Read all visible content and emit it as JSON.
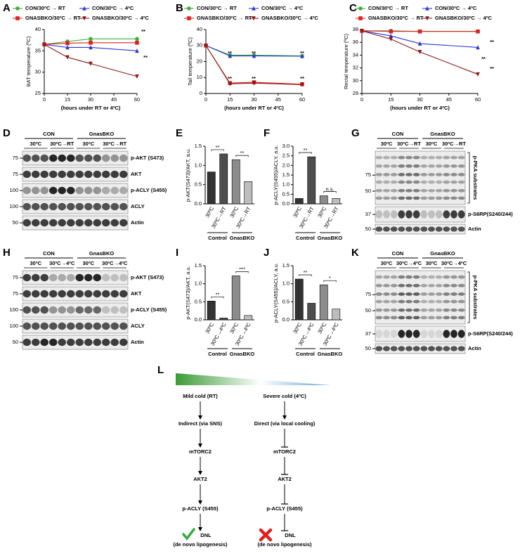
{
  "panel_labels": [
    "A",
    "B",
    "C",
    "D",
    "E",
    "F",
    "G",
    "H",
    "I",
    "J",
    "K",
    "L"
  ],
  "chart_data": [
    {
      "type": "line",
      "y_label": "BAT temperature (ºC)",
      "x_label": "(hours under RT or 4ºC)",
      "x": [
        0,
        15,
        30,
        60
      ],
      "xlim": [
        0,
        60
      ],
      "xticks": [
        0,
        15,
        30,
        45,
        60
      ],
      "ylim": [
        25,
        40
      ],
      "yticks": [
        25,
        30,
        35,
        40
      ],
      "series": [
        {
          "name": "CON/30ºC → RT",
          "color": "#3cb034",
          "marker": "circle",
          "values": [
            36.5,
            37.2,
            37.8,
            37.8
          ]
        },
        {
          "name": "CON/30ºC → 4ºC",
          "color": "#2a36d8",
          "marker": "triangle",
          "values": [
            36.5,
            35.8,
            35.8,
            35.0
          ]
        },
        {
          "name": "GNASBKO/30ºC → RT",
          "color": "#e0201c",
          "marker": "square",
          "values": [
            36.5,
            36.8,
            36.9,
            36.9
          ]
        },
        {
          "name": "GNASBKO/30ºC → 4ºC",
          "color": "#8b1a1a",
          "marker": "triangle-down",
          "values": [
            36.5,
            33.5,
            32.0,
            29.0
          ]
        }
      ],
      "annotations": [
        "**",
        "**"
      ]
    },
    {
      "type": "line",
      "y_label": "Tail temperature (ºC)",
      "x_label": "(hours under RT or 4ºC)",
      "x": [
        0,
        15,
        30,
        60
      ],
      "xlim": [
        0,
        60
      ],
      "xticks": [
        0,
        15,
        30,
        45,
        60
      ],
      "ylim": [
        0,
        40
      ],
      "yticks": [
        0,
        10,
        20,
        30,
        40
      ],
      "series": [
        {
          "name": "CON/30ºC → RT",
          "color": "#3cb034",
          "marker": "circle",
          "values": [
            30,
            24,
            24,
            23.5
          ]
        },
        {
          "name": "CON/30ºC → 4ºC",
          "color": "#2a36d8",
          "marker": "triangle",
          "values": [
            30,
            23.5,
            23.5,
            23.3
          ]
        },
        {
          "name": "GNASBKO/30ºC → RT",
          "color": "#e0201c",
          "marker": "square",
          "values": [
            30,
            6.5,
            7,
            5.8
          ]
        },
        {
          "name": "GNASBKO/30ºC → 4ºC",
          "color": "#8b1a1a",
          "marker": "triangle-down",
          "values": [
            30,
            6,
            6.5,
            5.5
          ]
        }
      ],
      "annotations": [
        "**",
        "**",
        "**",
        "**",
        "**",
        "**"
      ]
    },
    {
      "type": "line",
      "y_label": "Rectal temperature (ºC)",
      "x_label": "(hours under RT or 4ºC)",
      "x": [
        0,
        15,
        30,
        60
      ],
      "xlim": [
        0,
        60
      ],
      "xticks": [
        0,
        15,
        30,
        45,
        60
      ],
      "ylim": [
        28,
        38
      ],
      "yticks": [
        28,
        30,
        32,
        34,
        36,
        38
      ],
      "series": [
        {
          "name": "CON/30ºC → RT",
          "color": "#3cb034",
          "marker": "circle",
          "values": [
            37.8,
            37.8,
            37.7,
            37.7
          ]
        },
        {
          "name": "CON/30ºC → 4ºC",
          "color": "#2a36d8",
          "marker": "triangle",
          "values": [
            37.8,
            37,
            35.8,
            35.2
          ]
        },
        {
          "name": "GNASBKO/30ºC → RT",
          "color": "#e0201c",
          "marker": "square",
          "values": [
            37.8,
            37.7,
            37.7,
            37.7
          ]
        },
        {
          "name": "GNASBKO/30ºC → 4ºC",
          "color": "#8b1a1a",
          "marker": "triangle-down",
          "values": [
            37.8,
            36.5,
            34.5,
            31
          ]
        }
      ],
      "annotations": [
        "**",
        "**",
        "**"
      ]
    },
    {
      "type": "bar",
      "y_label": "p-AKT(S473)/AKT, a.u.",
      "categories": [
        "30ºC",
        "30ºC→RT",
        "30ºC",
        "30ºC→RT"
      ],
      "values": [
        0.83,
        1.3,
        1.15,
        0.58
      ],
      "colors": [
        "#333333",
        "#4d4d4d",
        "#8c8c8c",
        "#bdbdbd"
      ],
      "ylim": [
        0,
        1.5
      ],
      "yticks": [
        {
          "value": 0,
          "label": "0.0"
        },
        0.5,
        {
          "value": 1,
          "label": "1.0"
        },
        1.5
      ],
      "groups": [
        "Control",
        "GnasBKO"
      ],
      "annotations": [
        "**",
        "**"
      ]
    },
    {
      "type": "bar",
      "y_label": "p-ACLY(S455)/ACLY, a.u.",
      "categories": [
        "30ºC",
        "30ºC→RT",
        "30ºC",
        "30ºC→RT"
      ],
      "values": [
        0.28,
        2.45,
        0.42,
        0.28
      ],
      "colors": [
        "#333333",
        "#4d4d4d",
        "#8c8c8c",
        "#bdbdbd"
      ],
      "ylim": [
        0,
        3
      ],
      "yticks": [
        {
          "value": 0,
          "label": "0.0"
        },
        0.5,
        {
          "value": 1,
          "label": "1.0"
        },
        1.5,
        {
          "value": 2,
          "label": "2.0"
        },
        2.5,
        {
          "value": 3,
          "label": "3.0"
        }
      ],
      "groups": [
        "Control",
        "GnasBKO"
      ],
      "annotations": [
        "**",
        "n.s."
      ]
    },
    {
      "type": "bar",
      "y_label": "p-AKT(S473)/AKT, a.u.",
      "categories": [
        "30ºC",
        "30ºC→4ºC",
        "30ºC",
        "30ºC→4ºC"
      ],
      "values": [
        0.52,
        0.05,
        1.22,
        0.12
      ],
      "colors": [
        "#333333",
        "#4d4d4d",
        "#8c8c8c",
        "#bdbdbd"
      ],
      "ylim": [
        0,
        1.5
      ],
      "yticks": [
        {
          "value": 0,
          "label": "0.0"
        },
        0.5,
        {
          "value": 1,
          "label": "1.0"
        },
        1.5
      ],
      "groups": [
        "Control",
        "GnasBKO"
      ],
      "annotations": [
        "**",
        "***"
      ]
    },
    {
      "type": "bar",
      "y_label": "p-ACLY(S455)/ACLY, a.u.",
      "categories": [
        "30ºC",
        "30ºC→4ºC",
        "30ºC",
        "30ºC→4ºC"
      ],
      "values": [
        1.13,
        0.46,
        0.97,
        0.3
      ],
      "colors": [
        "#333333",
        "#4d4d4d",
        "#8c8c8c",
        "#bdbdbd"
      ],
      "ylim": [
        0,
        1.5
      ],
      "yticks": [
        {
          "value": 0,
          "label": "0.0"
        },
        0.5,
        {
          "value": 1,
          "label": "1.0"
        },
        1.5
      ],
      "groups": [
        "Control",
        "GnasBKO"
      ],
      "annotations": [
        "**",
        "*"
      ]
    }
  ],
  "blots": [
    {
      "group_labels": [
        "CON",
        "GnasBKO"
      ],
      "lane_labels": [
        "30ºC",
        "30ºC→RT",
        "30ºC",
        "30ºC→RT"
      ],
      "rows": [
        {
          "label": "p-AKT (S473)",
          "markers": [
            "75"
          ]
        },
        {
          "label": "AKT",
          "markers": [
            "75"
          ]
        },
        {
          "label": "p-ACLY (S455)",
          "markers": [
            "100"
          ]
        },
        {
          "label": "ACLY",
          "markers": [
            "100"
          ]
        },
        {
          "label": "Actin",
          "markers": [
            "50"
          ]
        }
      ]
    },
    {
      "group_labels": [
        "CON",
        "GnasBKO"
      ],
      "lane_labels": [
        "30ºC",
        "30ºC→RT",
        "30ºC",
        "30ºC→RT"
      ],
      "rows": [
        {
          "label": "p-PKA substrates",
          "markers": [
            "75",
            "50"
          ]
        },
        {
          "label": "p-S6RP(S240/244)",
          "markers": [
            "37"
          ]
        },
        {
          "label": "Actin",
          "markers": [
            "50"
          ]
        }
      ]
    },
    {
      "group_labels": [
        "CON",
        "GnasBKO"
      ],
      "lane_labels": [
        "30ºC",
        "30ºC→4ºC",
        "30ºC",
        "30ºC→4ºC"
      ],
      "rows": [
        {
          "label": "p-AKT (S473)",
          "markers": [
            "75"
          ]
        },
        {
          "label": "AKT",
          "markers": [
            "75"
          ]
        },
        {
          "label": "p-ACLY (S455)",
          "markers": [
            "100"
          ]
        },
        {
          "label": "ACLY",
          "markers": [
            "100"
          ]
        },
        {
          "label": "Actin",
          "markers": [
            "50"
          ]
        }
      ]
    },
    {
      "group_labels": [
        "CON",
        "GnasBKO"
      ],
      "lane_labels": [
        "30ºC",
        "30ºC→4ºC",
        "30ºC",
        "30ºC→4ºC"
      ],
      "rows": [
        {
          "label": "p-PKA substrates",
          "markers": [
            "75",
            "50"
          ]
        },
        {
          "label": "p-S6RP(S240/244)",
          "markers": [
            "37"
          ]
        },
        {
          "label": "Actin",
          "markers": [
            "50"
          ]
        }
      ]
    }
  ],
  "diagram": {
    "left": [
      "Mild cold (RT)",
      "Indirect (via SNS)",
      "mTORC2",
      "AKT2",
      "p-ACLY (S455)",
      "DNL",
      "(de novo lipogenesis)"
    ],
    "right": [
      "Severe cold (4ºC)",
      "Direct (via local cooling)",
      "mTORC2",
      "AKT2",
      "p-ACLY (S455)",
      "DNL",
      "(de novo lipogenesis)"
    ]
  }
}
